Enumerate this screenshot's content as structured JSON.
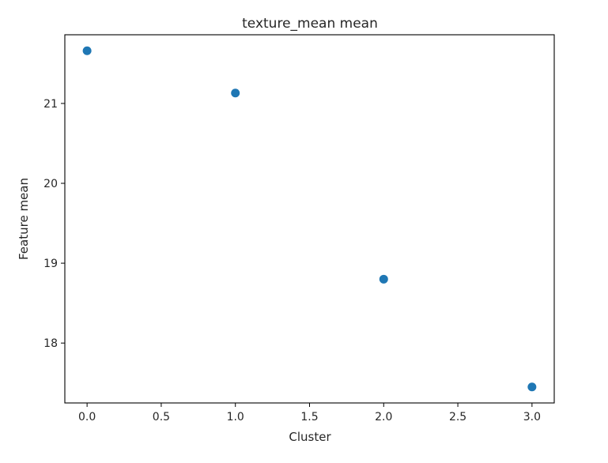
{
  "chart_data": {
    "type": "scatter",
    "title": "texture_mean mean",
    "xlabel": "Cluster",
    "ylabel": "Feature mean",
    "x": [
      0.0,
      1.0,
      2.0,
      3.0
    ],
    "y": [
      21.66,
      21.13,
      18.8,
      17.45
    ],
    "xlim": [
      -0.15,
      3.15
    ],
    "ylim": [
      17.25,
      21.86
    ],
    "xticks": [
      0.0,
      0.5,
      1.0,
      1.5,
      2.0,
      2.5,
      3.0
    ],
    "xtick_labels": [
      "0.0",
      "0.5",
      "1.0",
      "1.5",
      "2.0",
      "2.5",
      "3.0"
    ],
    "yticks": [
      18,
      19,
      20,
      21
    ],
    "ytick_labels": [
      "18",
      "19",
      "20",
      "21"
    ],
    "grid": false,
    "marker_color": "#1f77b4"
  }
}
